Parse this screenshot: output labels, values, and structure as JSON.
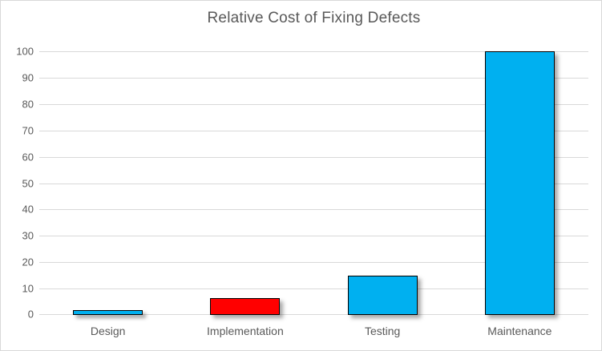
{
  "chart_data": {
    "type": "bar",
    "title": "Relative Cost of Fixing Defects",
    "categories": [
      "Design",
      "Implementation",
      "Testing",
      "Maintenance"
    ],
    "values": [
      1,
      6.5,
      15,
      100
    ],
    "bar_colors": [
      "#00B0F0",
      "#FF0000",
      "#00B0F0",
      "#00B0F0"
    ],
    "xlabel": "",
    "ylabel": "",
    "ylim": [
      0,
      100
    ],
    "ytick_step": 10,
    "ytick_labels": [
      "0",
      "10",
      "20",
      "30",
      "40",
      "50",
      "60",
      "70",
      "80",
      "90",
      "100"
    ],
    "grid": "horizontal",
    "legend": "none",
    "theme": {
      "text_color": "#595959",
      "gridline_color": "#D9D9D9",
      "bar_border_color": "#000000",
      "background": "#FFFFFF",
      "chart_border_color": "#D9D9D9",
      "shadow": "rgba(0,0,0,0.35)"
    }
  }
}
